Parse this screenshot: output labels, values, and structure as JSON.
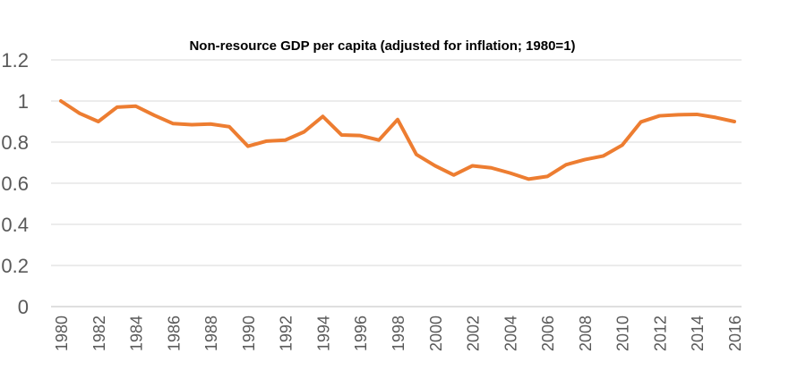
{
  "chart_data": {
    "type": "line",
    "title": "Non-resource GDP per capita (adjusted for inflation; 1980=1)",
    "xlabel": "",
    "ylabel": "",
    "ylim": [
      0,
      1.2
    ],
    "yticks": [
      0,
      0.2,
      0.4,
      0.6,
      0.8,
      1,
      1.2
    ],
    "ytick_labels": [
      "0",
      "0.2",
      "0.4",
      "0.6",
      "0.8",
      "1",
      "1.2"
    ],
    "xticks": [
      "1980",
      "1982",
      "1984",
      "1986",
      "1988",
      "1990",
      "1992",
      "1994",
      "1996",
      "1998",
      "2000",
      "2002",
      "2004",
      "2006",
      "2008",
      "2010",
      "2012",
      "2014",
      "2016"
    ],
    "grid": true,
    "legend": "none",
    "series": [
      {
        "color": "#ed7d31",
        "x": [
          1980,
          1981,
          1982,
          1983,
          1984,
          1985,
          1986,
          1987,
          1988,
          1989,
          1990,
          1991,
          1992,
          1993,
          1994,
          1995,
          1996,
          1997,
          1998,
          1999,
          2000,
          2001,
          2002,
          2003,
          2004,
          2005,
          2006,
          2007,
          2008,
          2009,
          2010,
          2011,
          2012,
          2013,
          2014,
          2015,
          2016
        ],
        "values": [
          1.0,
          0.94,
          0.9,
          0.97,
          0.975,
          0.93,
          0.89,
          0.885,
          0.888,
          0.875,
          0.78,
          0.805,
          0.81,
          0.85,
          0.925,
          0.835,
          0.832,
          0.81,
          0.91,
          0.74,
          0.685,
          0.64,
          0.685,
          0.675,
          0.65,
          0.62,
          0.633,
          0.69,
          0.715,
          0.733,
          0.785,
          0.898,
          0.928,
          0.933,
          0.935,
          0.92,
          0.9
        ]
      }
    ]
  }
}
